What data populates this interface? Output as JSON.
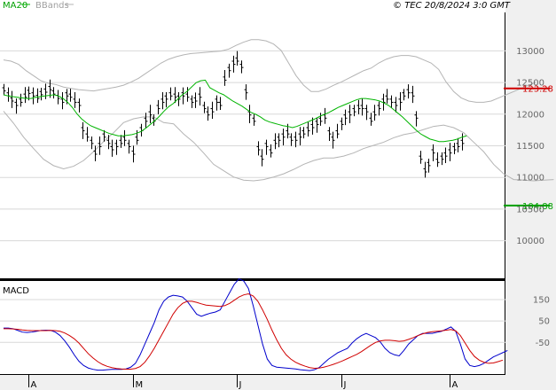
{
  "header": {
    "legend_ma": "MA20",
    "legend_bb": "BBands",
    "copyright": "© TEC 20/8/2024 3:0 GMT"
  },
  "colors": {
    "price": "#000000",
    "ma20": "#00b400",
    "bbands": "#b4b4b4",
    "resistance": "#d00000",
    "support": "#00a000",
    "macd": "#0000cc",
    "signal": "#d00000",
    "grid": "#d8d8d8",
    "panel_bg": "#f0f0f0"
  },
  "chart_data": [
    {
      "type": "line",
      "title": "",
      "ylim": [
        9400,
        13600
      ],
      "y_ticks": [
        "13000",
        "12500",
        "12000",
        "11500",
        "11000",
        "10500",
        "10000"
      ],
      "y_tick_values": [
        13000,
        12500,
        12000,
        11500,
        11000,
        10500,
        10000
      ],
      "x_ticks": [
        "A",
        "M",
        "J",
        "J",
        "A"
      ],
      "x_tick_index": [
        6,
        31,
        56,
        81,
        107
      ],
      "levels": [
        {
          "label": "123.28",
          "value": 12400,
          "color": "#d00000",
          "i0": 120,
          "i1": 132
        },
        {
          "label": "104.88",
          "value": 10550,
          "color": "#00a000",
          "i0": 120,
          "i1": 132
        }
      ],
      "price": [
        12380,
        12300,
        12220,
        12150,
        12200,
        12280,
        12340,
        12300,
        12260,
        12320,
        12360,
        12400,
        12330,
        12260,
        12200,
        12300,
        12280,
        12200,
        12150,
        11750,
        11650,
        11550,
        11380,
        11500,
        11650,
        11550,
        11450,
        11500,
        11550,
        11600,
        11500,
        11380,
        11600,
        11750,
        11900,
        12000,
        11900,
        12100,
        12200,
        12250,
        12300,
        12280,
        12250,
        12300,
        12280,
        12200,
        12220,
        12280,
        12100,
        12000,
        12050,
        12200,
        12150,
        12550,
        12700,
        12800,
        12850,
        12750,
        12350,
        12000,
        11900,
        11450,
        11300,
        11500,
        11400,
        11550,
        11600,
        11650,
        11700,
        11600,
        11600,
        11650,
        11700,
        11750,
        11800,
        11850,
        11900,
        11950,
        11700,
        11600,
        11700,
        11850,
        11950,
        12000,
        12050,
        12100,
        12100,
        12050,
        11900,
        12000,
        12100,
        12200,
        12250,
        12200,
        12150,
        12200,
        12300,
        12350,
        12300,
        11950,
        11300,
        11100,
        11200,
        11400,
        11250,
        11300,
        11350,
        11400,
        11450,
        11500,
        11550
      ],
      "ma20": [
        12300,
        12280,
        12270,
        12260,
        12250,
        12240,
        12240,
        12260,
        12270,
        12280,
        12290,
        12300,
        12280,
        12240,
        12180,
        12100,
        12000,
        11920,
        11860,
        11810,
        11780,
        11750,
        11720,
        11690,
        11670,
        11650,
        11650,
        11660,
        11670,
        11690,
        11720,
        11770,
        11830,
        11890,
        11960,
        12040,
        12110,
        12160,
        12230,
        12300,
        12350,
        12420,
        12490,
        12520,
        12530,
        12410,
        12370,
        12330,
        12300,
        12250,
        12200,
        12160,
        12120,
        12070,
        12020,
        11990,
        11950,
        11900,
        11870,
        11850,
        11830,
        11810,
        11800,
        11780,
        11800,
        11830,
        11860,
        11890,
        11920,
        11960,
        11990,
        12020,
        12060,
        12100,
        12130,
        12160,
        12190,
        12220,
        12240,
        12240,
        12230,
        12220,
        12200,
        12170,
        12130,
        12070,
        12010,
        11950,
        11880,
        11810,
        11740,
        11680,
        11640,
        11600,
        11580,
        11560,
        11560,
        11570,
        11580,
        11600,
        11630,
        11650
      ],
      "bb_upper": [
        12850,
        12830,
        12780,
        12680,
        12600,
        12520,
        12480,
        12460,
        12420,
        12400,
        12380,
        12370,
        12360,
        12380,
        12400,
        12420,
        12450,
        12500,
        12560,
        12640,
        12720,
        12800,
        12860,
        12900,
        12930,
        12950,
        12960,
        12970,
        12980,
        12990,
        13020,
        13080,
        13130,
        13170,
        13170,
        13150,
        13100,
        13000,
        12800,
        12600,
        12450,
        12350,
        12350,
        12390,
        12450,
        12500,
        12560,
        12620,
        12680,
        12720,
        12800,
        12860,
        12900,
        12920,
        12920,
        12900,
        12850,
        12800,
        12700,
        12500,
        12350,
        12250,
        12200,
        12180,
        12180,
        12200,
        12250,
        12300,
        12350,
        12400,
        12450,
        12500
      ],
      "bb_lower": [
        12040,
        11850,
        11630,
        11450,
        11280,
        11180,
        11130,
        11170,
        11260,
        11400,
        11560,
        11700,
        11860,
        11920,
        11950,
        11950,
        11860,
        11840,
        11680,
        11550,
        11380,
        11200,
        11100,
        11000,
        10950,
        10940,
        10960,
        11000,
        11050,
        11120,
        11200,
        11260,
        11300,
        11300,
        11330,
        11380,
        11450,
        11500,
        11550,
        11620,
        11670,
        11700,
        11750,
        11800,
        11820,
        11780,
        11700,
        11550,
        11400,
        11200,
        11050,
        10960,
        10950,
        10940,
        10950,
        10960
      ],
      "bb_upper_start": 0,
      "bb_upper_step": 1.8,
      "bb_lower_start": 0,
      "bb_lower_step": 2.4
    },
    {
      "type": "line",
      "title": "MACD",
      "ylim": [
        -200,
        235
      ],
      "y_ticks": [
        "150",
        "50",
        "-50"
      ],
      "y_tick_values": [
        150,
        50,
        -50
      ],
      "macd": [
        15,
        15,
        12,
        4,
        -4,
        -6,
        -4,
        0,
        4,
        5,
        4,
        -4,
        -20,
        -45,
        -75,
        -110,
        -140,
        -160,
        -172,
        -178,
        -182,
        -182,
        -180,
        -178,
        -178,
        -178,
        -176,
        -168,
        -150,
        -110,
        -60,
        -10,
        40,
        100,
        140,
        160,
        168,
        165,
        160,
        140,
        110,
        80,
        70,
        78,
        85,
        90,
        100,
        140,
        180,
        220,
        245,
        235,
        200,
        120,
        30,
        -60,
        -130,
        -160,
        -168,
        -170,
        -172,
        -174,
        -176,
        -180,
        -182,
        -184,
        -180,
        -170,
        -150,
        -130,
        -115,
        -100,
        -90,
        -80,
        -55,
        -35,
        -20,
        -10,
        -20,
        -30,
        -50,
        -80,
        -100,
        -110,
        -115,
        -90,
        -60,
        -40,
        -20,
        -10,
        -10,
        -10,
        -5,
        0,
        10,
        20,
        0,
        -60,
        -130,
        -160,
        -165,
        -160,
        -150,
        -135,
        -120,
        -110,
        -100,
        -90
      ],
      "signal": [
        12,
        12,
        11,
        9,
        6,
        4,
        3,
        3,
        3,
        3,
        4,
        3,
        0,
        -8,
        -20,
        -35,
        -55,
        -80,
        -105,
        -125,
        -142,
        -155,
        -164,
        -170,
        -174,
        -176,
        -177,
        -177,
        -174,
        -165,
        -145,
        -115,
        -80,
        -40,
        0,
        40,
        80,
        110,
        130,
        140,
        140,
        135,
        128,
        122,
        120,
        118,
        116,
        120,
        130,
        145,
        160,
        170,
        175,
        165,
        140,
        100,
        55,
        5,
        -40,
        -80,
        -110,
        -130,
        -145,
        -155,
        -163,
        -170,
        -173,
        -172,
        -168,
        -162,
        -155,
        -147,
        -138,
        -128,
        -118,
        -108,
        -95,
        -80,
        -65,
        -52,
        -45,
        -42,
        -42,
        -44,
        -47,
        -45,
        -38,
        -30,
        -20,
        -12,
        -6,
        -2,
        0,
        2,
        5,
        8,
        2,
        -20,
        -55,
        -90,
        -118,
        -135,
        -145,
        -150,
        -148,
        -142,
        -135
      ]
    }
  ]
}
